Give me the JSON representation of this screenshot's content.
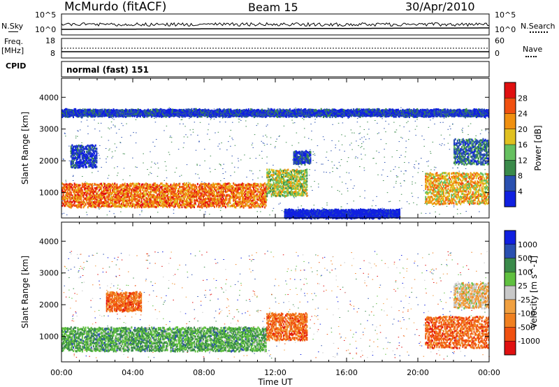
{
  "header": {
    "station": "McMurdo (fitACF)",
    "beam": "Beam 15",
    "date": "30/Apr/2010"
  },
  "side_labels": {
    "nsky": "N.Sky",
    "nsearch": "N.Search",
    "freq": "Freq.",
    "freq_unit": "[MHz]",
    "nave": "Nave",
    "cpid": "CPID"
  },
  "cpid_value": "normal (fast) 151",
  "noise_axis": {
    "left_ticks": [
      "10^5",
      "10^0"
    ],
    "right_ticks": [
      "10^5",
      "10^0"
    ]
  },
  "freq_axis": {
    "left_ticks": [
      "18",
      "8"
    ],
    "right_ticks": [
      "60",
      "0"
    ]
  },
  "colors": {
    "power_scale": [
      "#1020e0",
      "#2a50b0",
      "#3a8a4a",
      "#66c060",
      "#e0c020",
      "#f09010",
      "#f05010",
      "#e01010"
    ],
    "velocity_scale": [
      "#e01010",
      "#f05010",
      "#f08020",
      "#f0a040",
      "#c8c8c8",
      "#60c040",
      "#3a8a4a",
      "#2a50b0",
      "#1020e0"
    ]
  },
  "chart_data": [
    {
      "type": "heatmap",
      "name": "power",
      "ylabel": "Slant Range [km]",
      "yticks": [
        1000,
        2000,
        3000,
        4000
      ],
      "ylim": [
        200,
        4600
      ],
      "xlim": [
        0,
        24
      ],
      "colorbar": {
        "label": "Power [dB]",
        "ticks": [
          4,
          8,
          12,
          16,
          20,
          24,
          28
        ],
        "range": [
          0,
          32
        ]
      },
      "regions": [
        {
          "t": [
            0.0,
            11.5
          ],
          "range": [
            550,
            1300
          ],
          "value": 26
        },
        {
          "t": [
            11.5,
            13.8
          ],
          "range": [
            900,
            1750
          ],
          "value": 18
        },
        {
          "t": [
            0.5,
            2.0
          ],
          "range": [
            1800,
            2500
          ],
          "value": 8
        },
        {
          "t": [
            13.0,
            14.0
          ],
          "range": [
            1900,
            2300
          ],
          "value": 8
        },
        {
          "t": [
            20.4,
            24.0
          ],
          "range": [
            650,
            1650
          ],
          "value": 24
        },
        {
          "t": [
            22.0,
            24.0
          ],
          "range": [
            1900,
            2700
          ],
          "value": 10
        },
        {
          "t": [
            0.0,
            24.0
          ],
          "range": [
            3400,
            3600
          ],
          "value": 6
        },
        {
          "t": [
            12.5,
            19.0
          ],
          "range": [
            200,
            450
          ],
          "value": 4
        }
      ]
    },
    {
      "type": "heatmap",
      "name": "velocity",
      "ylabel": "Slant Range [km]",
      "xlabel": "Time UT",
      "yticks": [
        1000,
        2000,
        3000,
        4000
      ],
      "ylim": [
        200,
        4600
      ],
      "xlim": [
        0,
        24
      ],
      "xticks": [
        "00:00",
        "04:00",
        "08:00",
        "12:00",
        "16:00",
        "20:00",
        "00:00"
      ],
      "colorbar": {
        "label": "Velocity [m s^-1]",
        "ticks": [
          "1000",
          "500",
          "100",
          "25",
          "-25",
          "-100",
          "-500",
          "-1000"
        ]
      },
      "regions": [
        {
          "t": [
            0.0,
            11.5
          ],
          "range": [
            550,
            1300
          ],
          "value": 120
        },
        {
          "t": [
            11.5,
            13.8
          ],
          "range": [
            900,
            1750
          ],
          "value": -200
        },
        {
          "t": [
            2.5,
            4.5
          ],
          "range": [
            1800,
            2400
          ],
          "value": -150
        },
        {
          "t": [
            20.4,
            24.0
          ],
          "range": [
            650,
            1650
          ],
          "value": -200
        },
        {
          "t": [
            22.0,
            24.0
          ],
          "range": [
            1900,
            2700
          ],
          "value": 0
        }
      ]
    }
  ]
}
